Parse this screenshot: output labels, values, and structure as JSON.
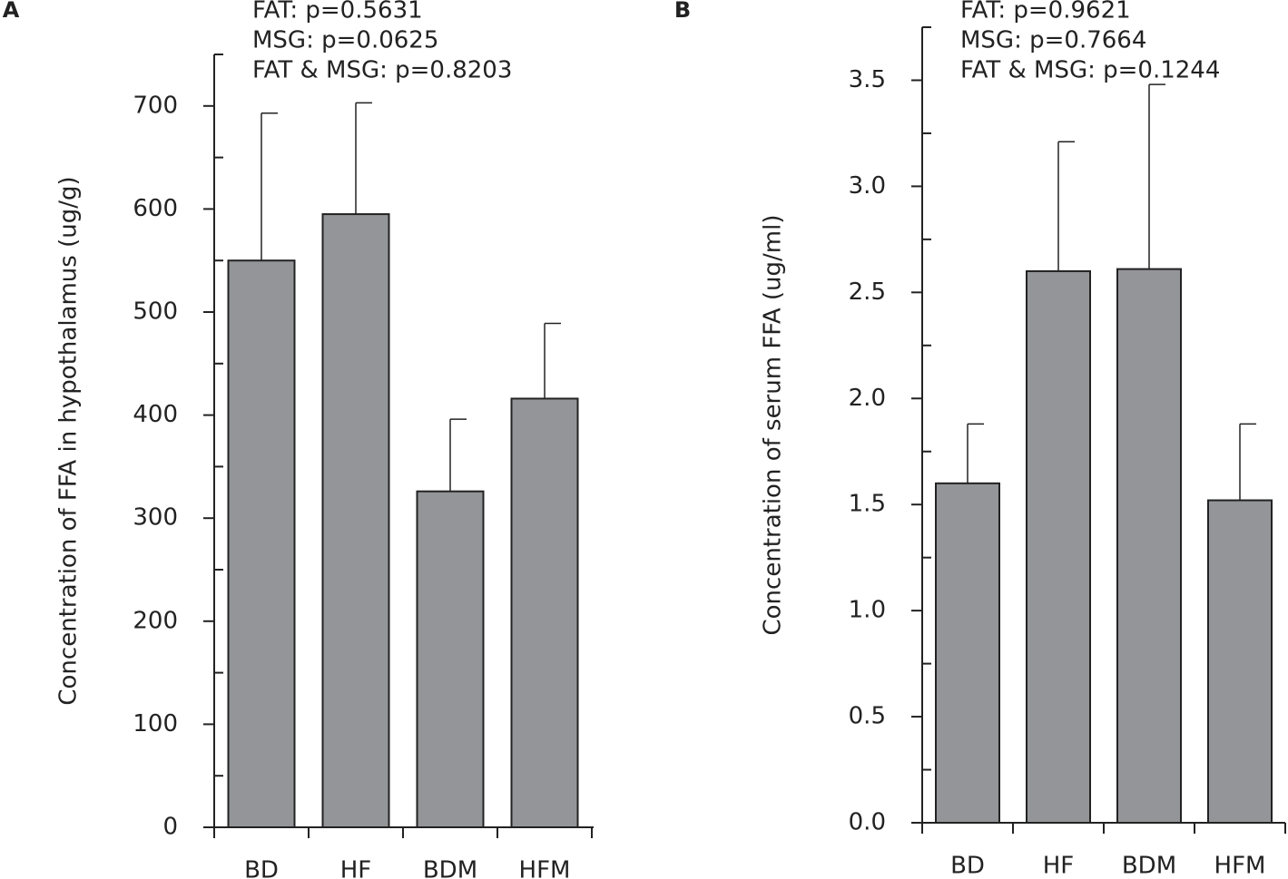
{
  "chart_data": [
    {
      "type": "bar",
      "panel": "A",
      "y_label": "Concentration of FFA in hypothalamus (ug/g)",
      "annotations": [
        "FAT: p=0.5631",
        "MSG: p=0.0625",
        "FAT & MSG: p=0.8203"
      ],
      "categories": [
        "BD",
        "HF",
        "BDM",
        "HFM"
      ],
      "values": [
        550,
        595,
        326,
        416
      ],
      "errors": [
        143,
        108,
        70,
        73
      ],
      "color": "#939598",
      "ylim": [
        0,
        750
      ],
      "yticks": [
        0,
        100,
        200,
        300,
        400,
        500,
        600,
        700
      ],
      "minor_yticks": [
        50,
        150,
        250,
        350,
        450,
        550,
        650,
        750
      ]
    },
    {
      "type": "bar",
      "panel": "B",
      "y_label": "Concentration of serum FFA (ug/ml)",
      "annotations": [
        "FAT: p=0.9621",
        "MSG: p=0.7664",
        "FAT & MSG: p=0.1244"
      ],
      "categories": [
        "BD",
        "HF",
        "BDM",
        "HFM"
      ],
      "values": [
        1.6,
        2.6,
        2.61,
        1.52
      ],
      "errors": [
        0.28,
        0.61,
        0.87,
        0.36
      ],
      "color": "#939598",
      "ylim": [
        0,
        3.75
      ],
      "yticks": [
        {
          "value": 0,
          "label": "0.0"
        },
        0.5,
        {
          "value": 1,
          "label": "1.0"
        },
        1.5,
        {
          "value": 2,
          "label": "2.0"
        },
        2.5,
        {
          "value": 3,
          "label": "3.0"
        },
        3.5
      ],
      "minor_yticks": [
        0.25,
        0.75,
        1.25,
        1.75,
        2.25,
        2.75,
        3.25,
        3.75
      ]
    }
  ]
}
